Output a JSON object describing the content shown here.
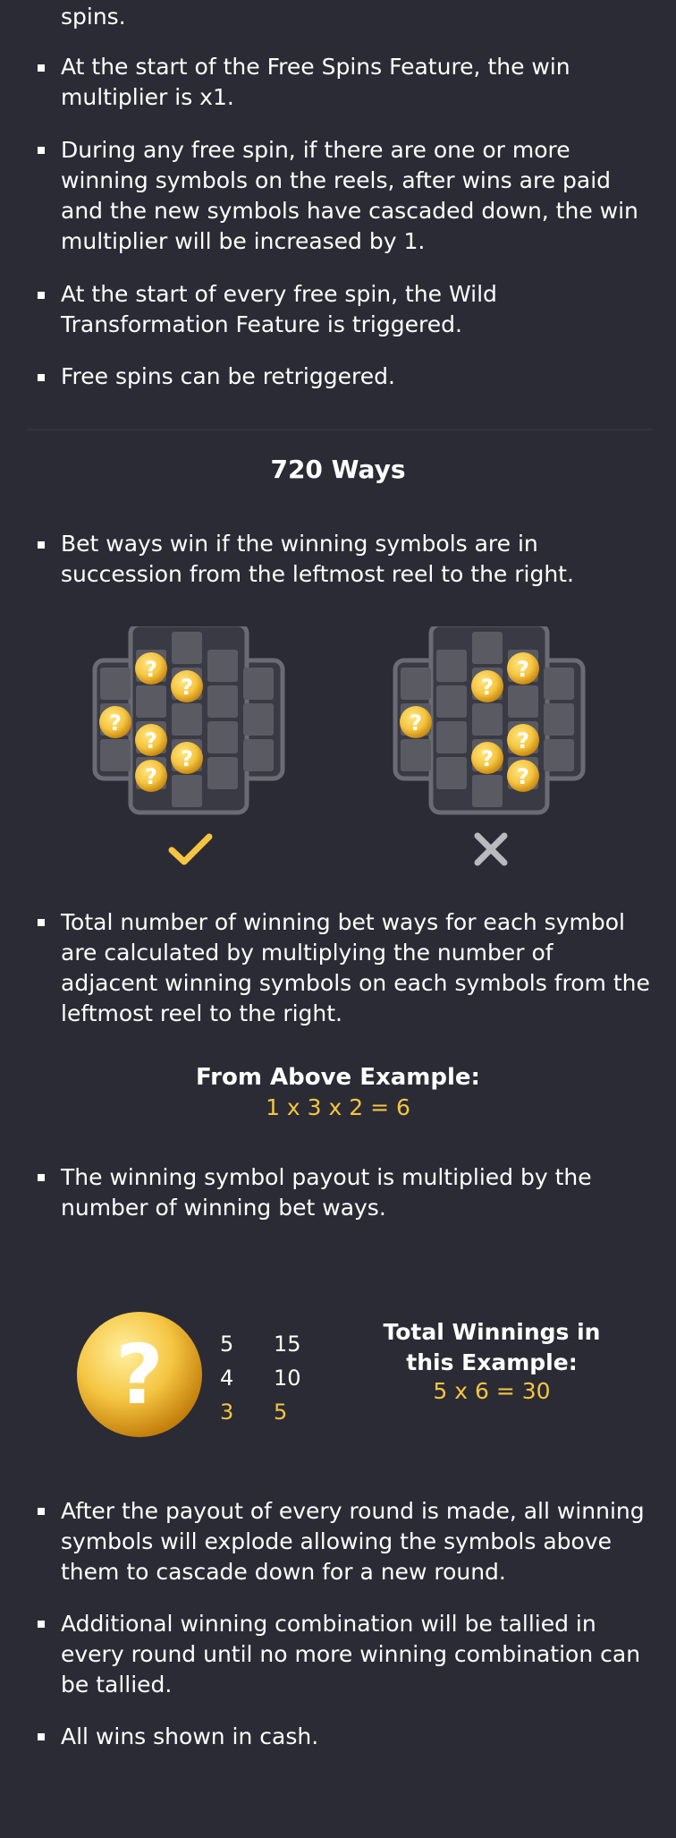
{
  "intro_fragment": "spins.",
  "free_spins_bullets": [
    "At the start of the Free Spins Feature, the win multiplier is x1.",
    "During any free spin, if there are one or more winning symbols on the reels, after wins are paid and the new symbols have cascaded down, the win multiplier will be increased by 1.",
    "At the start of every free spin, the Wild Transformation Feature is triggered.",
    "Free spins can be retriggered."
  ],
  "ways_section": {
    "title": "720 Ways",
    "bullet_1": "Bet ways win if the winning symbols are in succession from the leftmost reel to the right.",
    "example_valid_icon": "checkmark-icon",
    "example_invalid_icon": "cross-icon",
    "bullet_2": "Total number of winning bet ways for each symbol are calculated by multiplying the number of adjacent winning symbols on each symbols from the leftmost reel to the right.",
    "example_title": "From Above Example:",
    "example_formula": "1 x 3 x 2 = 6",
    "bullet_3": "The winning symbol payout is multiplied by the number of winning bet ways."
  },
  "paytable": {
    "symbol_icon": "mystery-coin-icon",
    "symbol_glyph": "?",
    "rows": [
      {
        "count": "5",
        "payout": "15"
      },
      {
        "count": "4",
        "payout": "10"
      },
      {
        "count": "3",
        "payout": "5"
      }
    ],
    "total_label": "Total Winnings in this Example:",
    "total_formula": "5 x 6 = 30"
  },
  "closing_bullets": [
    "After the payout of every round is made, all winning symbols will explode allowing the symbols above them to cascade down for a new round.",
    "Additional winning combination will be tallied in every round until no more winning combination can be tallied.",
    "All wins shown in cash."
  ],
  "colors": {
    "background": "#2b2b35",
    "accent_gold": "#f5c542",
    "text": "#ffffff",
    "cell": "#5a5a63"
  }
}
